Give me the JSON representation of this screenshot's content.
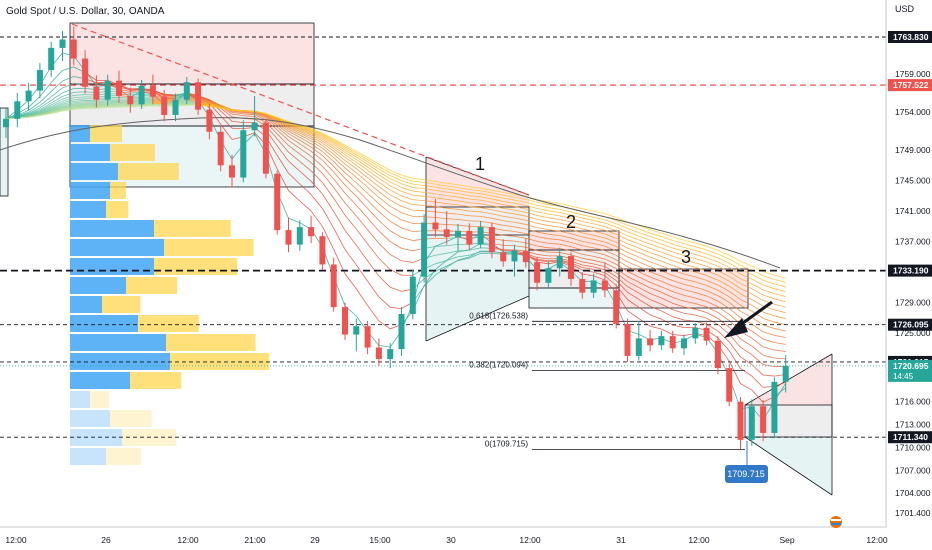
{
  "header": {
    "title": "Gold Spot / U.S. Dollar, 30, OANDA"
  },
  "colors": {
    "up": "#26a69a",
    "down": "#ef5350",
    "ribbon_hot": "#e53935",
    "ribbon_warm": "#ffca28",
    "ribbon_cool": "#26a69a",
    "vp_blue": "#42a5f5",
    "vp_orange": "#ffd54f",
    "badge_dark": "#131722",
    "badge_red": "#ef5350",
    "badge_green": "#26a69a",
    "badge_blue": "#3179c7"
  },
  "chart_data": {
    "type": "candlestick",
    "currency_label": "USD",
    "y_ticks": [
      "1763.830",
      "1759.000",
      "1757.522",
      "1754.000",
      "1749.000",
      "1745.000",
      "1741.000",
      "1737.000",
      "1733.190",
      "1729.000",
      "1726.095",
      "1725.000",
      "1721.215",
      "1720.695",
      "1716.000",
      "1713.000",
      "1711.340",
      "1710.000",
      "1707.000",
      "1704.000",
      "1701.400"
    ],
    "ylim": [
      1700.0,
      1767.0
    ],
    "x_ticks": [
      "12:00",
      "26",
      "12:00",
      "21:00",
      "29",
      "15:00",
      "30",
      "12:00",
      "31",
      "12:00",
      "Sep",
      "12:00"
    ],
    "price_badges": [
      {
        "label": "1763.830",
        "value": 1763.83,
        "style": "dark"
      },
      {
        "label": "1757.522",
        "value": 1757.522,
        "style": "red"
      },
      {
        "label": "1733.190",
        "value": 1733.19,
        "style": "dark"
      },
      {
        "label": "1726.095",
        "value": 1726.095,
        "style": "dark"
      },
      {
        "label": "1721.215",
        "value": 1721.215,
        "style": "dark"
      },
      {
        "label": "1720.695",
        "sub": "14:45",
        "value": 1720.695,
        "style": "green"
      },
      {
        "label": "1711.340",
        "value": 1711.34,
        "style": "dark"
      }
    ],
    "horizontal_levels": [
      {
        "value": 1763.83,
        "style": "dashed-dark"
      },
      {
        "value": 1757.522,
        "style": "dashed-red"
      },
      {
        "value": 1733.19,
        "style": "dashed-bold"
      },
      {
        "value": 1726.095,
        "style": "dashed-dark"
      },
      {
        "value": 1721.215,
        "style": "dashed-dark"
      },
      {
        "value": 1711.34,
        "style": "dashed-dark"
      }
    ],
    "fib_levels": [
      {
        "label": "0.618(1726.538)",
        "value": 1726.538
      },
      {
        "label": "0.382(1720.094)",
        "value": 1720.094
      },
      {
        "label": "0(1709.715)",
        "value": 1709.715
      }
    ],
    "low_marker": {
      "label": "1709.715",
      "value": 1709.715
    },
    "annotations": [
      "1",
      "2",
      "3"
    ],
    "candles": [
      {
        "o": 1752.0,
        "h": 1754.4,
        "l": 1750.6,
        "c": 1753.1
      },
      {
        "o": 1753.1,
        "h": 1756.5,
        "l": 1752.0,
        "c": 1755.4
      },
      {
        "o": 1755.4,
        "h": 1757.8,
        "l": 1754.2,
        "c": 1756.8
      },
      {
        "o": 1756.8,
        "h": 1760.4,
        "l": 1755.8,
        "c": 1759.5
      },
      {
        "o": 1759.5,
        "h": 1763.2,
        "l": 1758.6,
        "c": 1762.4
      },
      {
        "o": 1762.4,
        "h": 1764.6,
        "l": 1760.7,
        "c": 1763.5
      },
      {
        "o": 1763.5,
        "h": 1765.2,
        "l": 1760.1,
        "c": 1761.0
      },
      {
        "o": 1761.0,
        "h": 1762.1,
        "l": 1756.4,
        "c": 1757.3
      },
      {
        "o": 1757.3,
        "h": 1758.8,
        "l": 1754.6,
        "c": 1755.6
      },
      {
        "o": 1755.6,
        "h": 1758.9,
        "l": 1754.8,
        "c": 1758.1
      },
      {
        "o": 1758.1,
        "h": 1759.4,
        "l": 1755.2,
        "c": 1756.1
      },
      {
        "o": 1756.1,
        "h": 1757.2,
        "l": 1753.9,
        "c": 1755.0
      },
      {
        "o": 1755.0,
        "h": 1758.2,
        "l": 1754.4,
        "c": 1757.4
      },
      {
        "o": 1757.4,
        "h": 1758.9,
        "l": 1755.0,
        "c": 1756.0
      },
      {
        "o": 1756.0,
        "h": 1756.9,
        "l": 1752.8,
        "c": 1753.6
      },
      {
        "o": 1753.6,
        "h": 1756.4,
        "l": 1752.8,
        "c": 1755.6
      },
      {
        "o": 1755.6,
        "h": 1758.6,
        "l": 1755.0,
        "c": 1757.9
      },
      {
        "o": 1757.9,
        "h": 1758.4,
        "l": 1753.6,
        "c": 1754.3
      },
      {
        "o": 1754.3,
        "h": 1755.1,
        "l": 1750.4,
        "c": 1751.4
      },
      {
        "o": 1751.4,
        "h": 1752.2,
        "l": 1746.2,
        "c": 1747.0
      },
      {
        "o": 1747.0,
        "h": 1748.4,
        "l": 1744.1,
        "c": 1745.4
      },
      {
        "o": 1745.4,
        "h": 1752.9,
        "l": 1744.8,
        "c": 1751.6
      },
      {
        "o": 1751.6,
        "h": 1756.1,
        "l": 1750.8,
        "c": 1752.6
      },
      {
        "o": 1752.6,
        "h": 1753.1,
        "l": 1745.3,
        "c": 1745.9
      },
      {
        "o": 1745.9,
        "h": 1746.3,
        "l": 1737.9,
        "c": 1738.5
      },
      {
        "o": 1738.5,
        "h": 1740.1,
        "l": 1735.6,
        "c": 1736.6
      },
      {
        "o": 1736.6,
        "h": 1739.8,
        "l": 1735.8,
        "c": 1738.9
      },
      {
        "o": 1738.9,
        "h": 1740.4,
        "l": 1736.8,
        "c": 1737.7
      },
      {
        "o": 1737.7,
        "h": 1738.2,
        "l": 1733.3,
        "c": 1734.0
      },
      {
        "o": 1734.0,
        "h": 1734.9,
        "l": 1727.8,
        "c": 1728.4
      },
      {
        "o": 1728.4,
        "h": 1729.0,
        "l": 1724.1,
        "c": 1724.8
      },
      {
        "o": 1724.8,
        "h": 1726.9,
        "l": 1722.6,
        "c": 1725.9
      },
      {
        "o": 1725.9,
        "h": 1726.6,
        "l": 1722.2,
        "c": 1723.1
      },
      {
        "o": 1723.1,
        "h": 1724.3,
        "l": 1720.7,
        "c": 1721.6
      },
      {
        "o": 1721.6,
        "h": 1723.7,
        "l": 1720.4,
        "c": 1722.9
      },
      {
        "o": 1722.9,
        "h": 1728.4,
        "l": 1722.0,
        "c": 1727.5
      },
      {
        "o": 1727.5,
        "h": 1733.3,
        "l": 1726.8,
        "c": 1732.4
      },
      {
        "o": 1732.4,
        "h": 1740.6,
        "l": 1731.6,
        "c": 1739.5
      },
      {
        "o": 1739.5,
        "h": 1742.6,
        "l": 1737.6,
        "c": 1738.6
      },
      {
        "o": 1738.6,
        "h": 1741.0,
        "l": 1736.6,
        "c": 1737.6
      },
      {
        "o": 1737.6,
        "h": 1739.3,
        "l": 1735.8,
        "c": 1738.4
      },
      {
        "o": 1738.4,
        "h": 1739.4,
        "l": 1735.9,
        "c": 1736.6
      },
      {
        "o": 1736.6,
        "h": 1739.7,
        "l": 1736.1,
        "c": 1738.9
      },
      {
        "o": 1738.9,
        "h": 1739.5,
        "l": 1734.8,
        "c": 1735.6
      },
      {
        "o": 1735.6,
        "h": 1737.3,
        "l": 1733.7,
        "c": 1734.4
      },
      {
        "o": 1734.4,
        "h": 1736.6,
        "l": 1732.4,
        "c": 1735.8
      },
      {
        "o": 1735.8,
        "h": 1737.4,
        "l": 1733.6,
        "c": 1734.3
      },
      {
        "o": 1734.3,
        "h": 1735.0,
        "l": 1730.6,
        "c": 1731.6
      },
      {
        "o": 1731.6,
        "h": 1734.4,
        "l": 1730.8,
        "c": 1733.5
      },
      {
        "o": 1733.5,
        "h": 1736.2,
        "l": 1732.4,
        "c": 1735.1
      },
      {
        "o": 1735.1,
        "h": 1735.6,
        "l": 1731.2,
        "c": 1732.1
      },
      {
        "o": 1732.1,
        "h": 1733.0,
        "l": 1729.5,
        "c": 1730.3
      },
      {
        "o": 1730.3,
        "h": 1732.8,
        "l": 1729.6,
        "c": 1731.9
      },
      {
        "o": 1731.9,
        "h": 1734.3,
        "l": 1729.7,
        "c": 1730.6
      },
      {
        "o": 1730.6,
        "h": 1731.4,
        "l": 1725.6,
        "c": 1726.2
      },
      {
        "o": 1726.2,
        "h": 1726.9,
        "l": 1721.2,
        "c": 1722.0
      },
      {
        "o": 1722.0,
        "h": 1726.6,
        "l": 1721.4,
        "c": 1724.3
      },
      {
        "o": 1724.3,
        "h": 1725.4,
        "l": 1722.6,
        "c": 1723.4
      },
      {
        "o": 1723.4,
        "h": 1725.3,
        "l": 1722.8,
        "c": 1724.6
      },
      {
        "o": 1724.6,
        "h": 1725.3,
        "l": 1722.4,
        "c": 1723.0
      },
      {
        "o": 1723.0,
        "h": 1724.8,
        "l": 1722.1,
        "c": 1724.3
      },
      {
        "o": 1724.3,
        "h": 1726.3,
        "l": 1723.6,
        "c": 1725.7
      },
      {
        "o": 1725.7,
        "h": 1726.4,
        "l": 1723.4,
        "c": 1724.0
      },
      {
        "o": 1724.0,
        "h": 1724.6,
        "l": 1719.6,
        "c": 1720.4
      },
      {
        "o": 1720.4,
        "h": 1721.0,
        "l": 1715.4,
        "c": 1716.0
      },
      {
        "o": 1716.0,
        "h": 1716.6,
        "l": 1709.7,
        "c": 1711.0
      },
      {
        "o": 1711.0,
        "h": 1716.3,
        "l": 1710.2,
        "c": 1715.4
      },
      {
        "o": 1715.4,
        "h": 1716.2,
        "l": 1710.8,
        "c": 1711.9
      },
      {
        "o": 1711.9,
        "h": 1719.2,
        "l": 1711.2,
        "c": 1718.6
      },
      {
        "o": 1718.6,
        "h": 1722.1,
        "l": 1717.2,
        "c": 1720.7
      }
    ],
    "volume_profile": [
      {
        "blue": 0.1,
        "orange": 0.2
      },
      {
        "blue": 0.2,
        "orange": 0.28
      },
      {
        "blue": 0.24,
        "orange": 0.38
      },
      {
        "blue": 0.2,
        "orange": 0.1
      },
      {
        "blue": 0.18,
        "orange": 0.14
      },
      {
        "blue": 0.42,
        "orange": 0.48
      },
      {
        "blue": 0.47,
        "orange": 0.56
      },
      {
        "blue": 0.42,
        "orange": 0.52
      },
      {
        "blue": 0.28,
        "orange": 0.32
      },
      {
        "blue": 0.16,
        "orange": 0.24
      },
      {
        "blue": 0.34,
        "orange": 0.38
      },
      {
        "blue": 0.48,
        "orange": 0.56
      },
      {
        "blue": 0.5,
        "orange": 0.62
      },
      {
        "blue": 0.3,
        "orange": 0.32
      },
      {
        "blue": 0.1,
        "orange": 0.12
      },
      {
        "blue": 0.2,
        "orange": 0.26
      },
      {
        "blue": 0.26,
        "orange": 0.34
      },
      {
        "blue": 0.18,
        "orange": 0.22
      }
    ]
  }
}
